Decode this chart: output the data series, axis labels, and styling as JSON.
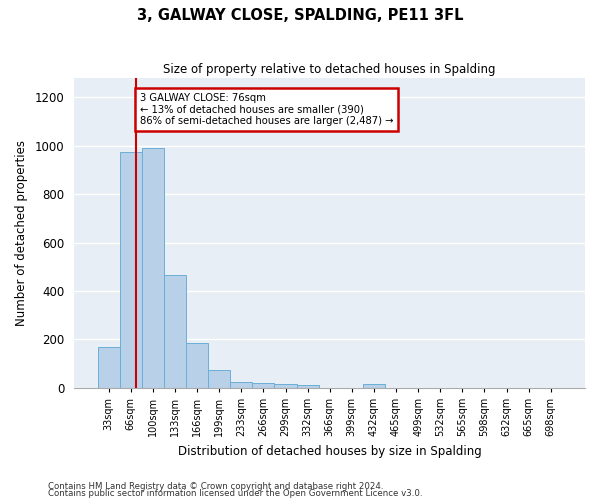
{
  "title": "3, GALWAY CLOSE, SPALDING, PE11 3FL",
  "subtitle": "Size of property relative to detached houses in Spalding",
  "xlabel": "Distribution of detached houses by size in Spalding",
  "ylabel": "Number of detached properties",
  "footnote1": "Contains HM Land Registry data © Crown copyright and database right 2024.",
  "footnote2": "Contains public sector information licensed under the Open Government Licence v3.0.",
  "annotation_title": "3 GALWAY CLOSE: 76sqm",
  "annotation_line1": "← 13% of detached houses are smaller (390)",
  "annotation_line2": "86% of semi-detached houses are larger (2,487) →",
  "bar_labels": [
    "33sqm",
    "66sqm",
    "100sqm",
    "133sqm",
    "166sqm",
    "199sqm",
    "233sqm",
    "266sqm",
    "299sqm",
    "332sqm",
    "366sqm",
    "399sqm",
    "432sqm",
    "465sqm",
    "499sqm",
    "532sqm",
    "565sqm",
    "598sqm",
    "632sqm",
    "665sqm",
    "698sqm"
  ],
  "bar_values": [
    170,
    975,
    990,
    465,
    185,
    75,
    25,
    20,
    15,
    10,
    0,
    0,
    15,
    0,
    0,
    0,
    0,
    0,
    0,
    0,
    0
  ],
  "bar_color": "#b8d0e8",
  "bar_edge_color": "#6aaed6",
  "red_line_x": 1.25,
  "ylim": [
    0,
    1280
  ],
  "yticks": [
    0,
    200,
    400,
    600,
    800,
    1000,
    1200
  ],
  "background_color": "#e8eef5",
  "annotation_box_color": "#ffffff",
  "annotation_box_edge": "#cc0000",
  "red_line_color": "#cc0000",
  "grid_color": "#ffffff",
  "fig_width": 6.0,
  "fig_height": 5.0,
  "dpi": 100
}
